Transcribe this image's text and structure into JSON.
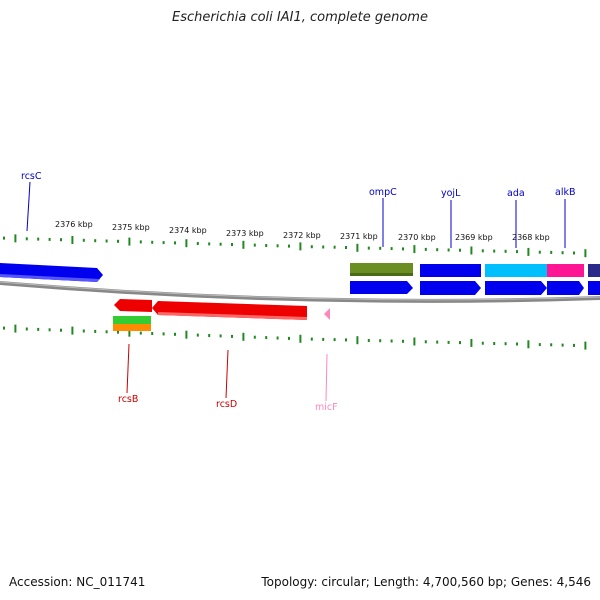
{
  "title": "Escherichia coli IAI1, complete genome",
  "footer": {
    "accession": "Accession: NC_011741",
    "summary": "Topology: circular; Length: 4,700,560 bp; Genes: 4,546"
  },
  "ticks": [
    "2376 kbp",
    "2375 kbp",
    "2374 kbp",
    "2373 kbp",
    "2372 kbp",
    "2371 kbp",
    "2370 kbp",
    "2369 kbp",
    "2368 kbp"
  ],
  "genes_top": [
    {
      "name": "rcsC",
      "color": "#0000cc"
    },
    {
      "name": "ompC",
      "color": "#0000cc"
    },
    {
      "name": "yojL",
      "color": "#0000cc"
    },
    {
      "name": "ada",
      "color": "#0000cc"
    },
    {
      "name": "alkB",
      "color": "#0000cc"
    }
  ],
  "genes_bottom": [
    {
      "name": "rcsB",
      "color": "#cc0000"
    },
    {
      "name": "rcsD",
      "color": "#cc0000"
    },
    {
      "name": "micF",
      "color": "#ff88bb"
    }
  ],
  "colors": {
    "forward_cds": "#0000ee",
    "reverse_cds": "#ee0000",
    "backbone": "#888888",
    "gc_ticks": "#228822",
    "ompC_feature": "#6b8e23",
    "ada_feature": "#00bfff",
    "alkB_feature": "#ff1493",
    "rcsB_feature_1": "#33cc33",
    "rcsB_feature_2": "#ff8c00",
    "micF_feature": "#ff88bb"
  }
}
